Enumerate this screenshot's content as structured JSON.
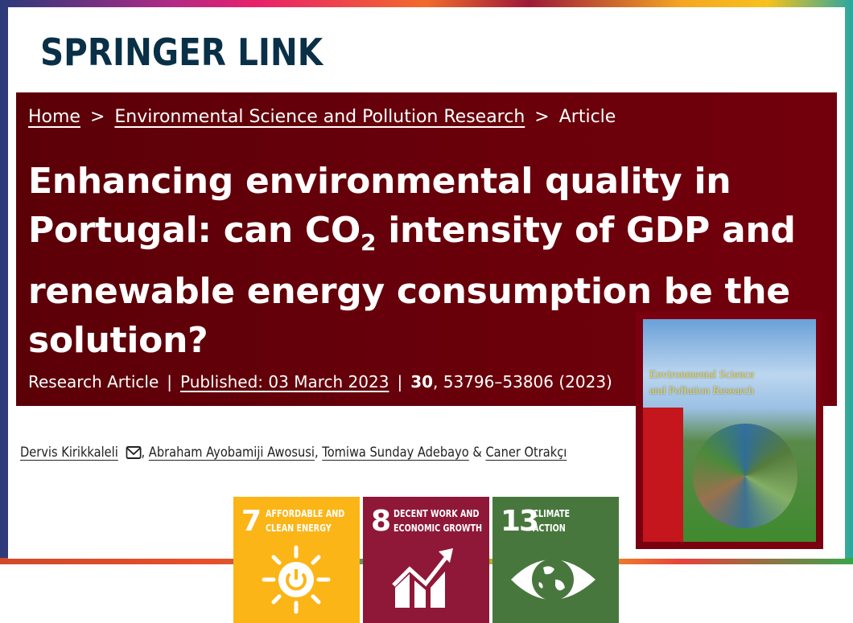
{
  "brand": {
    "logo": "SPRINGER LINK"
  },
  "breadcrumb": {
    "items": [
      "Home",
      "Environmental Science and Pollution Research"
    ],
    "current": "Article",
    "separator": ">"
  },
  "article": {
    "title_pre": "Enhancing environmental quality in Portugal: can CO",
    "title_sub": "2",
    "title_post": " intensity of GDP and renewable energy consumption be the solution?",
    "type": "Research Article",
    "published": "Published: 03 March 2023",
    "volume": "30",
    "pages": ", 53796–53806 (2023)"
  },
  "authors": [
    {
      "name": "Dervis Kirikkaleli",
      "email_icon": "envelope-icon"
    },
    {
      "name": "Abraham Ayobamiji Awosusi"
    },
    {
      "name": "Tomiwa Sunday Adebayo"
    },
    {
      "name": "Caner Otrakçı"
    }
  ],
  "author_separators": [
    ",",
    ",",
    "&"
  ],
  "journal_cover": {
    "title_line1": "Environmental Science",
    "title_line2": "and Pollution Research"
  },
  "sdgs": [
    {
      "number": "7",
      "line1": "AFFORDABLE AND",
      "line2": "CLEAN ENERGY",
      "color": "#FCB517",
      "icon": "sun-power-icon"
    },
    {
      "number": "8",
      "line1": "DECENT WORK AND",
      "line2": "ECONOMIC GROWTH",
      "color": "#8F1838",
      "icon": "growth-chart-icon"
    },
    {
      "number": "13",
      "line1": "CLIMATE",
      "line2": "ACTION",
      "color": "#48773E",
      "icon": "eye-globe-icon"
    }
  ]
}
